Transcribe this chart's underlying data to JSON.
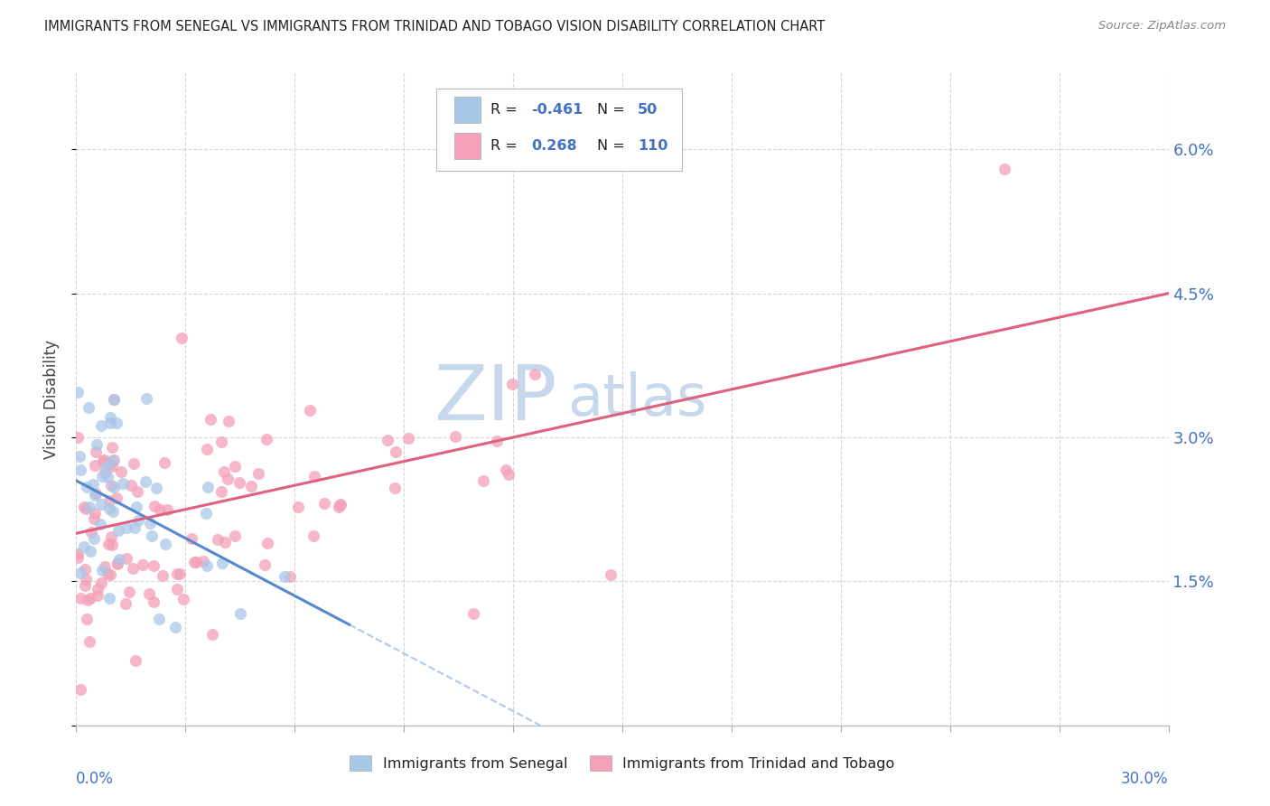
{
  "title": "IMMIGRANTS FROM SENEGAL VS IMMIGRANTS FROM TRINIDAD AND TOBAGO VISION DISABILITY CORRELATION CHART",
  "source": "Source: ZipAtlas.com",
  "ylabel": "Vision Disability",
  "xlim": [
    0.0,
    30.0
  ],
  "ylim": [
    0.0,
    6.8
  ],
  "ytick_vals": [
    0.0,
    1.5,
    3.0,
    4.5,
    6.0
  ],
  "ytick_labels": [
    "",
    "1.5%",
    "3.0%",
    "4.5%",
    "6.0%"
  ],
  "color_senegal": "#a8c8e8",
  "color_tt": "#f4a0b8",
  "color_senegal_line": "#5588cc",
  "color_tt_line": "#e06080",
  "watermark_zip": "ZIP",
  "watermark_atlas": "atlas",
  "watermark_color": "#c8d8ec",
  "background_color": "#ffffff",
  "grid_color": "#cccccc",
  "senegal_r": -0.461,
  "senegal_n": 50,
  "tt_r": 0.268,
  "tt_n": 110,
  "senegal_line_x0": 0.0,
  "senegal_line_y0": 2.55,
  "senegal_line_x1": 7.5,
  "senegal_line_y1": 1.05,
  "tt_line_x0": 0.0,
  "tt_line_y0": 2.0,
  "tt_line_x1": 30.0,
  "tt_line_y1": 4.5
}
